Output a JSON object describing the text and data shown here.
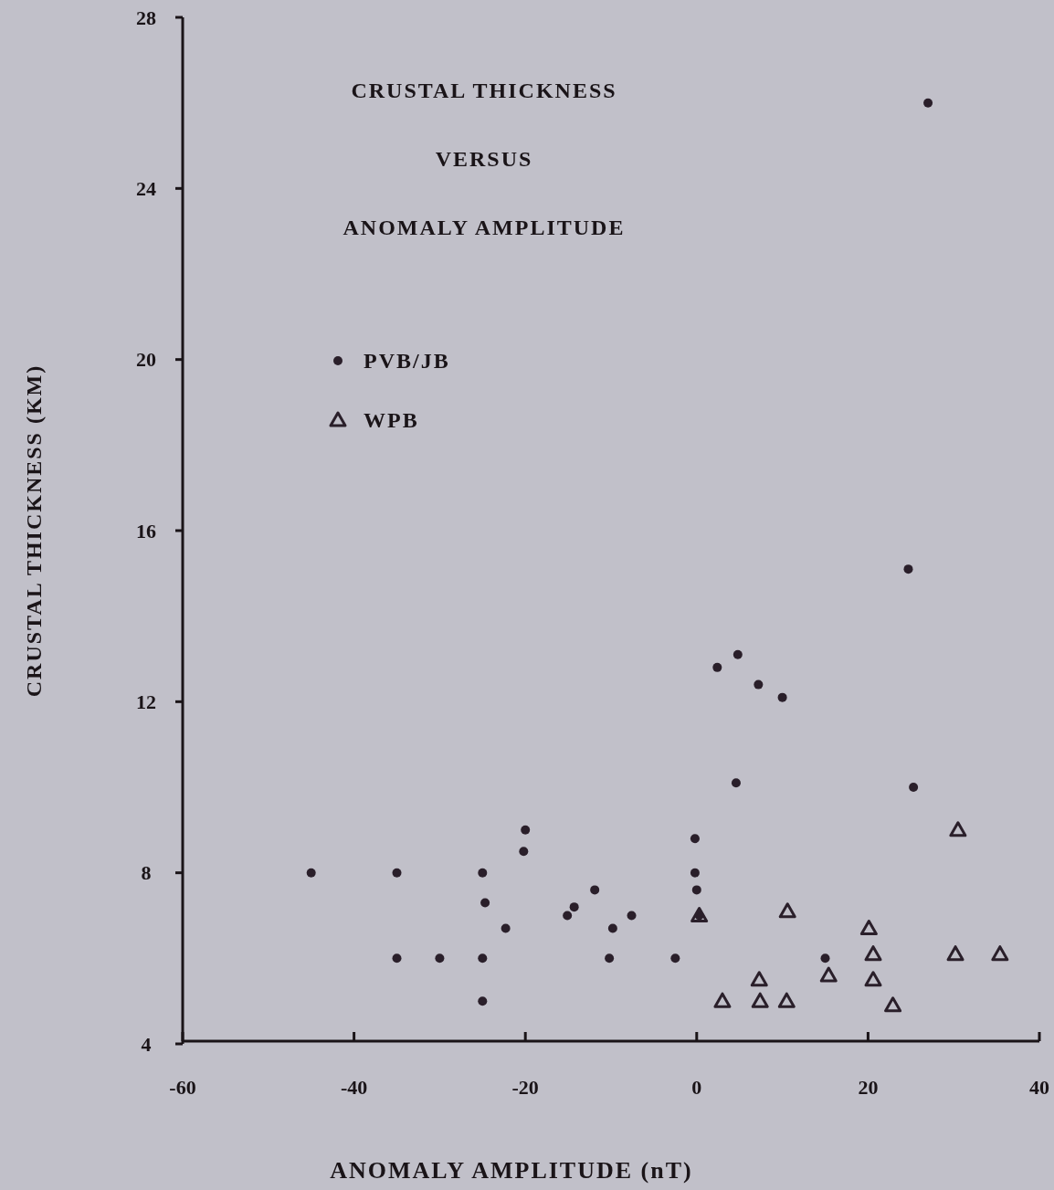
{
  "chart_data": {
    "type": "scatter",
    "title": "CRUSTAL THICKNESS\nVERSUS\nANOMALY AMPLITUDE",
    "xlabel": "ANOMALY AMPLITUDE (nT)",
    "ylabel": "CRUSTAL THICKNESS (KM)",
    "xlim": [
      -60,
      40
    ],
    "ylim": [
      4,
      28
    ],
    "xticks": [
      -60,
      -40,
      -20,
      0,
      20,
      40
    ],
    "yticks": [
      4,
      8,
      12,
      16,
      20,
      24,
      28
    ],
    "grid": false,
    "legend": "top left",
    "series": [
      {
        "name": "PVB/JB",
        "color": "#2a1f2a",
        "marker": "circle",
        "x": [
          -45,
          -35,
          -35,
          -30,
          -25,
          -24.7,
          -25,
          -25,
          -22.3,
          -20,
          -20.2,
          -15.1,
          -14.3,
          -11.9,
          -7.6,
          -9.8,
          -10.2,
          -2.5,
          -0.2,
          -0.2,
          0,
          0.3,
          4.8,
          2.4,
          7.2,
          10,
          4.6,
          25.3,
          15,
          27,
          24.7
        ],
        "values": [
          8,
          8,
          6,
          6,
          8,
          7.3,
          6,
          5,
          6.7,
          9,
          8.5,
          7,
          7.2,
          7.6,
          7,
          6.7,
          6,
          6,
          8.8,
          8,
          7.6,
          7,
          13.1,
          12.8,
          12.4,
          12.1,
          10.1,
          10,
          6,
          26,
          15.1
        ]
      },
      {
        "name": "WPB",
        "color": "#2a1f2a",
        "marker": "triangle",
        "x": [
          0.3,
          30.5,
          10.6,
          20.1,
          20.6,
          30.2,
          35.4,
          15.4,
          20.6,
          7.3,
          3,
          7.4,
          10.5,
          22.9
        ],
        "values": [
          7,
          9,
          7.1,
          6.7,
          6.1,
          6.1,
          6.1,
          5.6,
          5.5,
          5.5,
          5,
          5,
          5,
          4.9
        ]
      }
    ]
  }
}
